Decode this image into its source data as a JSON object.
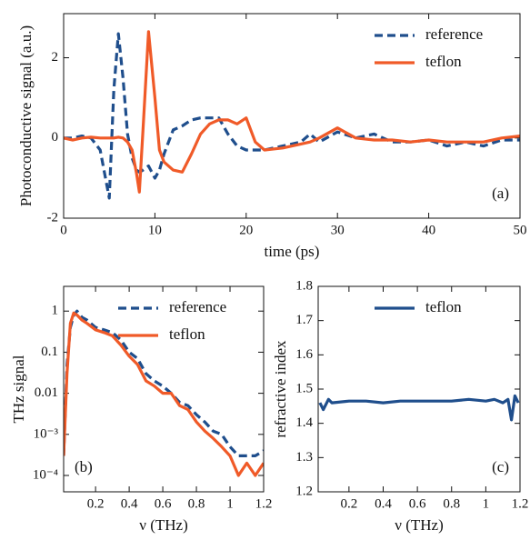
{
  "chart_data": [
    {
      "type": "line",
      "xlabel": "time (ps)",
      "ylabel": "Photoconductive signal (a.u.)",
      "xlim": [
        0,
        50
      ],
      "ylim": [
        -2,
        3.1
      ],
      "xticks": [
        0,
        10,
        20,
        30,
        40,
        50
      ],
      "yticks": [
        -2,
        0,
        2
      ],
      "yscale": "linear",
      "grid": false,
      "legend": "upper right",
      "annotation": {
        "text": "(a)",
        "loc": "lower right"
      },
      "x": [
        0,
        1,
        2,
        3,
        4,
        5,
        5.5,
        6,
        6.5,
        7,
        7.5,
        8,
        8.3,
        8.7,
        9.3,
        10,
        10.5,
        11,
        12,
        13,
        14,
        15,
        16,
        17,
        18,
        19,
        20,
        20.5,
        21,
        22,
        24,
        26,
        27,
        28,
        30,
        32,
        34,
        36,
        38,
        40,
        42,
        44,
        46,
        48,
        50
      ],
      "series": [
        {
          "name": "reference",
          "color": "#1f4e8c",
          "linestyle": "dashed",
          "values": [
            0,
            0,
            0.05,
            0,
            -0.3,
            -1.5,
            1.2,
            2.6,
            1.5,
            0.1,
            -0.5,
            -0.8,
            -0.85,
            -0.8,
            -0.7,
            -1.0,
            -0.8,
            -0.4,
            0.2,
            0.3,
            0.45,
            0.5,
            0.5,
            0.5,
            0.1,
            -0.2,
            -0.3,
            -0.3,
            -0.3,
            -0.3,
            -0.2,
            -0.1,
            0.1,
            -0.1,
            0.15,
            0,
            0.1,
            -0.1,
            -0.1,
            -0.05,
            -0.2,
            -0.1,
            -0.2,
            -0.05,
            -0.05
          ]
        },
        {
          "name": "teflon",
          "color": "#f05a28",
          "linestyle": "solid",
          "values": [
            0,
            -0.05,
            0,
            0.02,
            0,
            0,
            0,
            0.02,
            0,
            -0.1,
            -0.3,
            -0.9,
            -1.35,
            0.2,
            2.65,
            1.0,
            -0.3,
            -0.6,
            -0.8,
            -0.85,
            -0.4,
            0.1,
            0.35,
            0.45,
            0.45,
            0.35,
            0.5,
            0.2,
            -0.1,
            -0.3,
            -0.25,
            -0.15,
            -0.1,
            0,
            0.25,
            0,
            -0.05,
            -0.05,
            -0.1,
            -0.05,
            -0.1,
            -0.1,
            -0.1,
            0,
            0.05
          ]
        }
      ]
    },
    {
      "type": "line",
      "xlabel": "ν (THz)",
      "ylabel": "THz signal",
      "xlim": [
        0.01,
        1.2
      ],
      "ylim": [
        4e-05,
        4
      ],
      "xticks": [
        0.2,
        0.4,
        0.6,
        0.8,
        1,
        1.2
      ],
      "yticks": [
        1,
        0.1,
        0.01,
        {
          "value": 0.001,
          "label": "10⁻³"
        },
        {
          "value": 0.0001,
          "label": "10⁻⁴"
        }
      ],
      "yscale": "log",
      "grid": false,
      "legend": "upper right",
      "annotation": {
        "text": "(b)",
        "loc": "lower left"
      },
      "x": [
        0.01,
        0.03,
        0.05,
        0.07,
        0.09,
        0.12,
        0.15,
        0.2,
        0.25,
        0.3,
        0.35,
        0.4,
        0.45,
        0.5,
        0.55,
        0.6,
        0.65,
        0.7,
        0.75,
        0.8,
        0.85,
        0.9,
        0.95,
        1.0,
        1.05,
        1.1,
        1.15,
        1.2
      ],
      "series": [
        {
          "name": "reference",
          "color": "#1f4e8c",
          "linestyle": "dashed",
          "values": [
            0.0003,
            0.05,
            0.4,
            0.8,
            1.0,
            0.7,
            0.6,
            0.4,
            0.35,
            0.3,
            0.2,
            0.1,
            0.07,
            0.03,
            0.02,
            0.015,
            0.01,
            0.006,
            0.005,
            0.003,
            0.002,
            0.0012,
            0.001,
            0.0005,
            0.0003,
            0.0003,
            0.0003,
            0.0004
          ]
        },
        {
          "name": "teflon",
          "color": "#f05a28",
          "linestyle": "solid",
          "values": [
            0.0003,
            0.03,
            0.5,
            0.9,
            0.8,
            0.6,
            0.5,
            0.35,
            0.3,
            0.25,
            0.15,
            0.08,
            0.05,
            0.02,
            0.015,
            0.01,
            0.01,
            0.005,
            0.004,
            0.002,
            0.0012,
            0.0008,
            0.0005,
            0.0003,
            0.0001,
            0.0002,
            0.0001,
            0.0002
          ]
        }
      ]
    },
    {
      "type": "line",
      "xlabel": "ν (THz)",
      "ylabel": "refractive index",
      "xlim": [
        0.02,
        1.2
      ],
      "ylim": [
        1.2,
        1.8
      ],
      "xticks": [
        0.2,
        0.4,
        0.6,
        0.8,
        1,
        1.2
      ],
      "yticks": [
        1.2,
        1.3,
        1.4,
        1.5,
        1.6,
        1.7,
        1.8
      ],
      "yscale": "linear",
      "grid": false,
      "legend": "upper right",
      "annotation": {
        "text": "(c)",
        "loc": "lower right"
      },
      "x": [
        0.03,
        0.05,
        0.08,
        0.1,
        0.2,
        0.3,
        0.4,
        0.5,
        0.6,
        0.7,
        0.8,
        0.9,
        1.0,
        1.05,
        1.1,
        1.13,
        1.15,
        1.17,
        1.19
      ],
      "series": [
        {
          "name": "teflon",
          "color": "#1f4e8c",
          "linestyle": "solid",
          "values": [
            1.46,
            1.44,
            1.47,
            1.46,
            1.465,
            1.465,
            1.46,
            1.465,
            1.465,
            1.465,
            1.465,
            1.47,
            1.465,
            1.47,
            1.46,
            1.47,
            1.41,
            1.48,
            1.46
          ]
        }
      ]
    }
  ]
}
